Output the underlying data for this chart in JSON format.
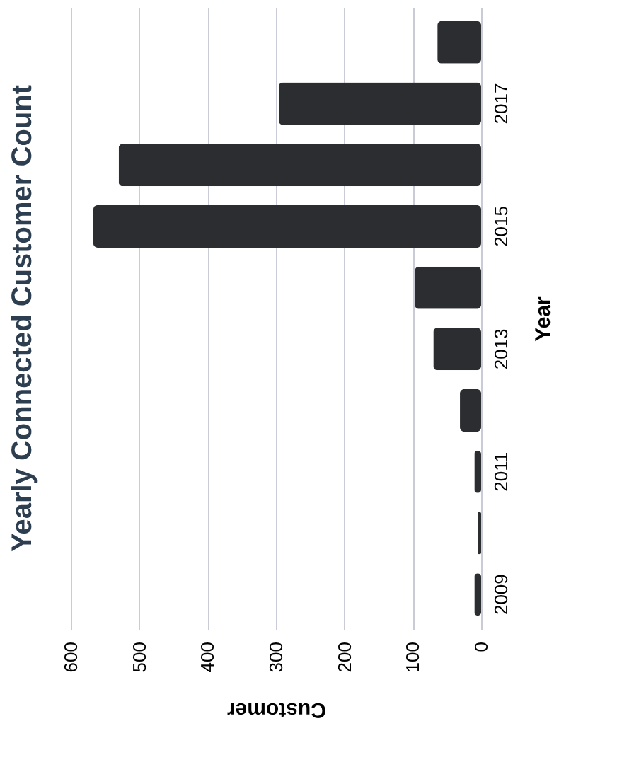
{
  "chart_data": {
    "type": "bar",
    "orientation": "horizontal",
    "title": "Yearly Connected Customer Count",
    "xlabel": "Customer",
    "ylabel": "Year",
    "categories": [
      null,
      "2017",
      null,
      "2015",
      null,
      "2013",
      null,
      "2011",
      null,
      "2009"
    ],
    "values": [
      64,
      296,
      530,
      567,
      97,
      70,
      31,
      10,
      5,
      10
    ],
    "color": "#2b2d31",
    "xlim": [
      600,
      0
    ],
    "xticks": [
      0,
      100,
      200,
      300,
      400,
      500,
      600
    ],
    "grid": "x"
  }
}
